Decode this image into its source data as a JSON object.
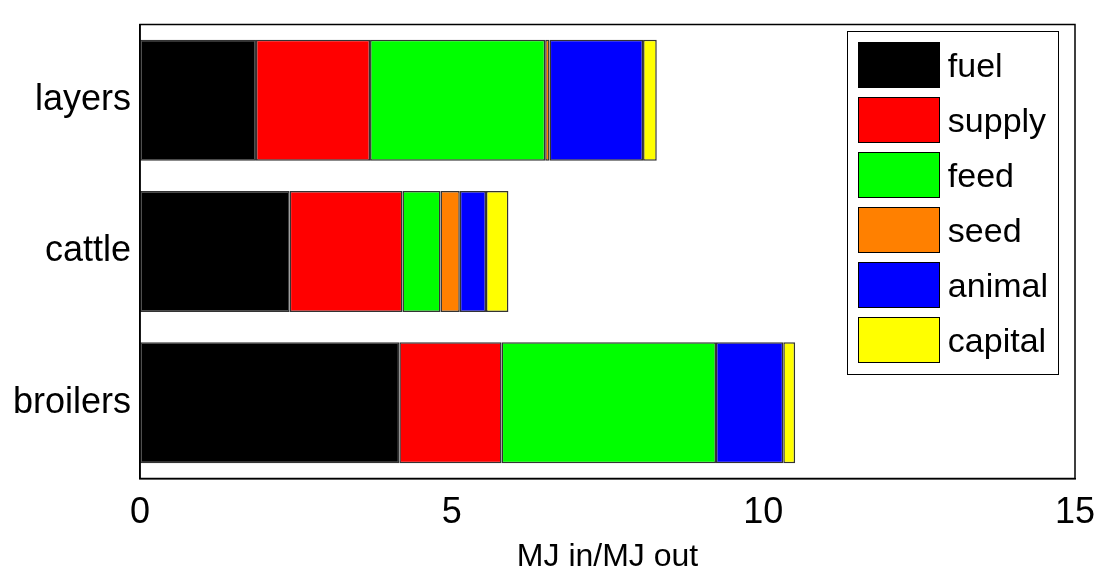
{
  "chart_data": {
    "type": "bar",
    "orientation": "horizontal",
    "stacked": true,
    "xlabel": "MJ in/MJ out",
    "categories": [
      "layers",
      "cattle",
      "broilers"
    ],
    "xlim": [
      0,
      15
    ],
    "xticks": [
      0,
      5,
      10,
      15
    ],
    "legend": "top right",
    "grid": false,
    "series": [
      {
        "name": "fuel",
        "color": "#000000",
        "values": [
          1.86,
          2.4,
          4.16
        ]
      },
      {
        "name": "supply",
        "color": "#ff0000",
        "values": [
          1.83,
          1.81,
          1.64
        ]
      },
      {
        "name": "feed",
        "color": "#00ff00",
        "values": [
          2.81,
          0.61,
          3.44
        ]
      },
      {
        "name": "seed",
        "color": "#ff8000",
        "values": [
          0.07,
          0.31,
          0
        ]
      },
      {
        "name": "animal",
        "color": "#0000ff",
        "values": [
          1.5,
          0.42,
          1.08
        ]
      },
      {
        "name": "capital",
        "color": "#ffff00",
        "values": [
          0.22,
          0.36,
          0.19
        ]
      }
    ]
  }
}
